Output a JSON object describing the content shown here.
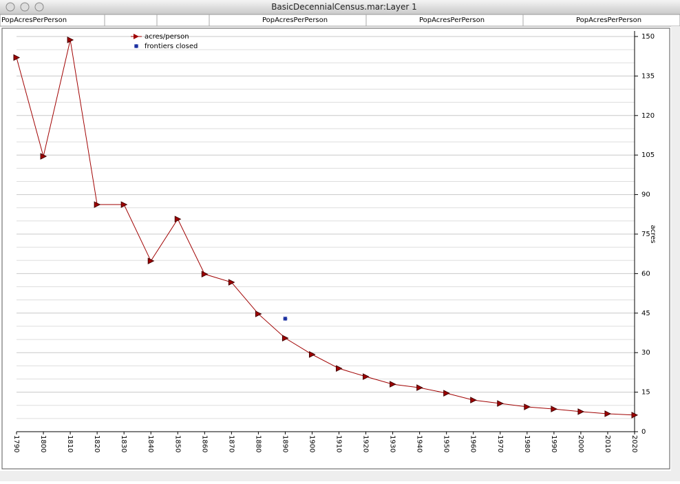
{
  "window": {
    "title": "BasicDecennialCensus.mar:Layer 1"
  },
  "header_cells": [
    "PopAcresPerPerson",
    "PopAcresPerPerson",
    "PopAcresPerPerson",
    "PopAcresPerPerson"
  ],
  "chart_data": {
    "type": "line",
    "x": [
      1790,
      1800,
      1810,
      1820,
      1830,
      1840,
      1850,
      1860,
      1870,
      1880,
      1890,
      1900,
      1910,
      1920,
      1930,
      1940,
      1950,
      1960,
      1970,
      1980,
      1990,
      2000,
      2010,
      2020
    ],
    "series": [
      {
        "name": "acres/person",
        "color": "#a00000",
        "marker": "triangle",
        "values": [
          142,
          104.5,
          148.7,
          86.2,
          86.2,
          64.8,
          80.7,
          59.8,
          56.7,
          44.7,
          35.5,
          29.3,
          24.0,
          20.9,
          18.0,
          16.7,
          14.6,
          12.0,
          10.7,
          9.4,
          8.6,
          7.6,
          6.8,
          6.3
        ]
      },
      {
        "name": "frontiers closed",
        "color": "#1a2fa0",
        "marker": "asterisk",
        "x": [
          1890
        ],
        "values": [
          42.9
        ]
      }
    ],
    "xlim": [
      1790,
      2020
    ],
    "xticks": [
      1790,
      1800,
      1810,
      1820,
      1830,
      1840,
      1850,
      1860,
      1870,
      1880,
      1890,
      1900,
      1910,
      1920,
      1930,
      1940,
      1950,
      1960,
      1970,
      1980,
      1990,
      2000,
      2010,
      2020
    ],
    "ylim": [
      0,
      150
    ],
    "yticks": [
      0,
      15,
      30,
      45,
      60,
      75,
      90,
      105,
      120,
      135,
      150
    ],
    "minor_yticks": [
      5,
      10,
      20,
      25,
      35,
      40,
      50,
      55,
      65,
      70,
      80,
      85,
      95,
      100,
      110,
      115,
      125,
      130,
      140,
      145
    ],
    "y_label": "acres",
    "y_axis_side": "right",
    "grid": true,
    "legend": "top-left"
  }
}
